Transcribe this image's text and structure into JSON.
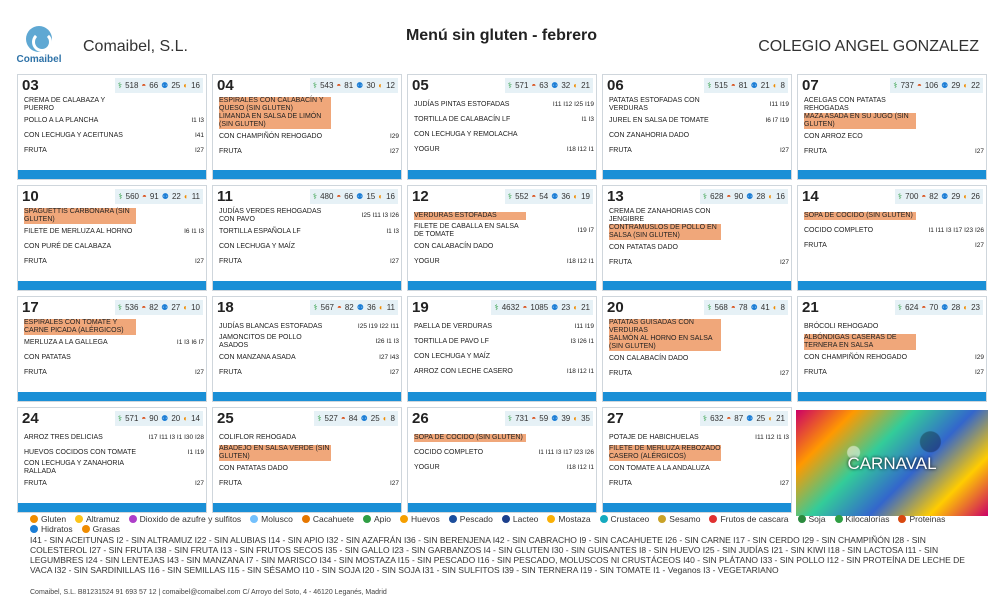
{
  "header": {
    "logo_text": "Comaibel",
    "company": "Comaibel, S.L.",
    "title": "Menú sin gluten - febrero",
    "school": "COLEGIO ANGEL GONZALEZ"
  },
  "weeks": [
    [
      {
        "day": "03",
        "kcal": "518",
        "pro": "66",
        "hid": "25",
        "gra": "16",
        "dishes": [
          {
            "name": "CREMA DE CALABAZA Y PUERRO",
            "codes": "",
            "hl": false
          },
          {
            "name": "POLLO A LA PLANCHA",
            "codes": "I1 I3",
            "hl": false
          },
          {
            "name": "CON LECHUGA Y ACEITUNAS",
            "codes": "I41",
            "hl": false
          },
          {
            "name": "FRUTA",
            "codes": "I27",
            "hl": false
          }
        ]
      },
      {
        "day": "04",
        "kcal": "543",
        "pro": "81",
        "hid": "30",
        "gra": "12",
        "dishes": [
          {
            "name": "ESPIRALES CON CALABACÍN Y QUESO (SIN GLUTEN)",
            "codes": "",
            "hl": true
          },
          {
            "name": "LIMANDA EN SALSA DE LIMÓN (SIN GLUTEN)",
            "codes": "",
            "hl": true
          },
          {
            "name": "CON CHAMPIÑÓN REHOGADO",
            "codes": "I29",
            "hl": false
          },
          {
            "name": "FRUTA",
            "codes": "I27",
            "hl": false
          }
        ]
      },
      {
        "day": "05",
        "kcal": "571",
        "pro": "63",
        "hid": "32",
        "gra": "21",
        "dishes": [
          {
            "name": "JUDÍAS PINTAS ESTOFADAS",
            "codes": "I11 I12 I25 I19",
            "hl": false
          },
          {
            "name": "TORTILLA DE CALABACÍN LF",
            "codes": "I1 I3",
            "hl": false
          },
          {
            "name": "CON LECHUGA Y REMOLACHA",
            "codes": "",
            "hl": false
          },
          {
            "name": "YOGUR",
            "codes": "I18 I12 I1",
            "hl": false
          }
        ]
      },
      {
        "day": "06",
        "kcal": "515",
        "pro": "81",
        "hid": "21",
        "gra": "8",
        "dishes": [
          {
            "name": "PATATAS ESTOFADAS CON VERDURAS",
            "codes": "I11 I19",
            "hl": false
          },
          {
            "name": "JUREL EN SALSA DE TOMATE",
            "codes": "I6 I7 I19",
            "hl": false
          },
          {
            "name": "CON ZANAHORIA DADO",
            "codes": "",
            "hl": false
          },
          {
            "name": "FRUTA",
            "codes": "I27",
            "hl": false
          }
        ]
      },
      {
        "day": "07",
        "kcal": "737",
        "pro": "106",
        "hid": "29",
        "gra": "22",
        "dishes": [
          {
            "name": "ACELGAS CON PATATAS REHOGADAS",
            "codes": "",
            "hl": false
          },
          {
            "name": "MAZA ASADA EN SU JUGO (SIN GLUTEN)",
            "codes": "",
            "hl": true
          },
          {
            "name": "CON ARROZ ECO",
            "codes": "",
            "hl": false
          },
          {
            "name": "FRUTA",
            "codes": "I27",
            "hl": false
          }
        ]
      }
    ],
    [
      {
        "day": "10",
        "kcal": "560",
        "pro": "91",
        "hid": "22",
        "gra": "11",
        "dishes": [
          {
            "name": "SPAGUETTIS CARBONARA (SIN GLUTEN)",
            "codes": "",
            "hl": true
          },
          {
            "name": "FILETE DE MERLUZA AL HORNO",
            "codes": "I6 I1 I3",
            "hl": false
          },
          {
            "name": "CON PURÉ DE CALABAZA",
            "codes": "",
            "hl": false
          },
          {
            "name": "FRUTA",
            "codes": "I27",
            "hl": false
          }
        ]
      },
      {
        "day": "11",
        "kcal": "480",
        "pro": "66",
        "hid": "15",
        "gra": "16",
        "dishes": [
          {
            "name": "JUDÍAS VERDES REHOGADAS CON PAVO",
            "codes": "I25 I11 I3 I26",
            "hl": false
          },
          {
            "name": "TORTILLA ESPAÑOLA LF",
            "codes": "I1 I3",
            "hl": false
          },
          {
            "name": "CON LECHUGA Y MAÍZ",
            "codes": "",
            "hl": false
          },
          {
            "name": "FRUTA",
            "codes": "I27",
            "hl": false
          }
        ]
      },
      {
        "day": "12",
        "kcal": "552",
        "pro": "54",
        "hid": "36",
        "gra": "19",
        "dishes": [
          {
            "name": "VERDURAS ESTOFADAS",
            "codes": "",
            "hl": true
          },
          {
            "name": "FILETE DE CABALLA EN SALSA DE TOMATE",
            "codes": "I19 I7",
            "hl": false
          },
          {
            "name": "CON CALABACÍN DADO",
            "codes": "",
            "hl": false
          },
          {
            "name": "YOGUR",
            "codes": "I18 I12 I1",
            "hl": false
          }
        ]
      },
      {
        "day": "13",
        "kcal": "628",
        "pro": "90",
        "hid": "28",
        "gra": "16",
        "dishes": [
          {
            "name": "CREMA DE ZANAHORIAS CON JENGIBRE",
            "codes": "",
            "hl": false
          },
          {
            "name": "CONTRAMUSLOS DE POLLO EN SALSA (SIN GLUTEN)",
            "codes": "",
            "hl": true
          },
          {
            "name": "CON PATATAS DADO",
            "codes": "",
            "hl": false
          },
          {
            "name": "FRUTA",
            "codes": "I27",
            "hl": false
          }
        ]
      },
      {
        "day": "14",
        "kcal": "700",
        "pro": "82",
        "hid": "29",
        "gra": "26",
        "dishes": [
          {
            "name": "SOPA DE COCIDO (SIN GLUTEN)",
            "codes": "",
            "hl": true
          },
          {
            "name": "COCIDO COMPLETO",
            "codes": "I1 I11 I3 I17 I23 I26",
            "hl": false
          },
          {
            "name": "FRUTA",
            "codes": "I27",
            "hl": false
          }
        ]
      }
    ],
    [
      {
        "day": "17",
        "kcal": "536",
        "pro": "82",
        "hid": "27",
        "gra": "10",
        "dishes": [
          {
            "name": "ESPIRALES CON TOMATE Y CARNE PICADA (ALÉRGICOS)",
            "codes": "",
            "hl": true
          },
          {
            "name": "MERLUZA A LA GALLEGA",
            "codes": "I1 I3 I6 I7",
            "hl": false
          },
          {
            "name": "CON PATATAS",
            "codes": "",
            "hl": false
          },
          {
            "name": "FRUTA",
            "codes": "I27",
            "hl": false
          }
        ]
      },
      {
        "day": "18",
        "kcal": "567",
        "pro": "82",
        "hid": "36",
        "gra": "11",
        "dishes": [
          {
            "name": "JUDÍAS BLANCAS ESTOFADAS",
            "codes": "I25 I19 I22 I11",
            "hl": false
          },
          {
            "name": "JAMONCITOS DE POLLO ASADOS",
            "codes": "I26 I1 I3",
            "hl": false
          },
          {
            "name": "CON MANZANA ASADA",
            "codes": "I27 I43",
            "hl": false
          },
          {
            "name": "FRUTA",
            "codes": "I27",
            "hl": false
          }
        ]
      },
      {
        "day": "19",
        "kcal": "4632",
        "pro": "1085",
        "hid": "23",
        "gra": "21",
        "dishes": [
          {
            "name": "PAELLA DE VERDURAS",
            "codes": "I11 I19",
            "hl": false
          },
          {
            "name": "TORTILLA DE PAVO LF",
            "codes": "I3 I26 I1",
            "hl": false
          },
          {
            "name": "CON LECHUGA Y MAÍZ",
            "codes": "",
            "hl": false
          },
          {
            "name": "ARROZ CON LECHE CASERO",
            "codes": "I18 I12 I1",
            "hl": false
          }
        ]
      },
      {
        "day": "20",
        "kcal": "568",
        "pro": "78",
        "hid": "41",
        "gra": "8",
        "dishes": [
          {
            "name": "PATATAS GUISADAS CON VERDURAS",
            "codes": "",
            "hl": true
          },
          {
            "name": "SALMÓN AL HORNO EN SALSA (SIN GLUTEN)",
            "codes": "",
            "hl": true
          },
          {
            "name": "CON CALABACÍN DADO",
            "codes": "",
            "hl": false
          },
          {
            "name": "FRUTA",
            "codes": "I27",
            "hl": false
          }
        ]
      },
      {
        "day": "21",
        "kcal": "624",
        "pro": "70",
        "hid": "28",
        "gra": "23",
        "dishes": [
          {
            "name": "BRÓCOLI REHOGADO",
            "codes": "",
            "hl": false
          },
          {
            "name": "ALBÓNDIGAS CASERAS DE TERNERA EN SALSA",
            "codes": "",
            "hl": true
          },
          {
            "name": "CON CHAMPIÑÓN REHOGADO",
            "codes": "I29",
            "hl": false
          },
          {
            "name": "FRUTA",
            "codes": "I27",
            "hl": false
          }
        ]
      }
    ],
    [
      {
        "day": "24",
        "kcal": "571",
        "pro": "90",
        "hid": "20",
        "gra": "14",
        "dishes": [
          {
            "name": "ARROZ TRES DELICIAS",
            "codes": "I17 I11 I3 I1 I30 I28",
            "hl": false
          },
          {
            "name": "HUEVOS COCIDOS CON TOMATE",
            "codes": "I1 I19",
            "hl": false
          },
          {
            "name": "CON LECHUGA Y ZANAHORIA RALLADA",
            "codes": "",
            "hl": false
          },
          {
            "name": "FRUTA",
            "codes": "I27",
            "hl": false
          }
        ]
      },
      {
        "day": "25",
        "kcal": "527",
        "pro": "84",
        "hid": "25",
        "gra": "8",
        "dishes": [
          {
            "name": "COLIFLOR REHOGADA",
            "codes": "",
            "hl": false
          },
          {
            "name": "ABADEJO EN SALSA VERDE (SIN GLUTEN)",
            "codes": "",
            "hl": true
          },
          {
            "name": "CON PATATAS DADO",
            "codes": "",
            "hl": false
          },
          {
            "name": "FRUTA",
            "codes": "I27",
            "hl": false
          }
        ]
      },
      {
        "day": "26",
        "kcal": "731",
        "pro": "59",
        "hid": "39",
        "gra": "35",
        "dishes": [
          {
            "name": "SOPA DE COCIDO (SIN GLUTEN)",
            "codes": "",
            "hl": true
          },
          {
            "name": "COCIDO COMPLETO",
            "codes": "I1 I11 I3 I17 I23 I26",
            "hl": false
          },
          {
            "name": "YOGUR",
            "codes": "I18 I12 I1",
            "hl": false
          }
        ]
      },
      {
        "day": "27",
        "kcal": "632",
        "pro": "87",
        "hid": "25",
        "gra": "21",
        "dishes": [
          {
            "name": "POTAJE DE HABICHUELAS",
            "codes": "I11 I12 I1 I3",
            "hl": false
          },
          {
            "name": "FILETE DE MERLUZA REBOZADO CASERO (ALÉRGICOS)",
            "codes": "",
            "hl": true
          },
          {
            "name": "CON TOMATE A LA ANDALUZA",
            "codes": "",
            "hl": false
          },
          {
            "name": "FRUTA",
            "codes": "I27",
            "hl": false
          }
        ]
      }
    ]
  ],
  "carnaval_label": "CARNAVAL",
  "legend": {
    "allergens": [
      {
        "label": "Gluten",
        "color": "#f08c00"
      },
      {
        "label": "Altramuz",
        "color": "#fcc419"
      },
      {
        "label": "Dioxido de azufre y sulfitos",
        "color": "#ae3ec9"
      },
      {
        "label": "Molusco",
        "color": "#74c0fc"
      },
      {
        "label": "Cacahuete",
        "color": "#e67700"
      },
      {
        "label": "Apio",
        "color": "#2f9e44"
      },
      {
        "label": "Huevos",
        "color": "#f59f00"
      },
      {
        "label": "Pescado",
        "color": "#1c4e9c"
      },
      {
        "label": "Lacteo",
        "color": "#1c3f8c"
      },
      {
        "label": "Mostaza",
        "color": "#fab005"
      },
      {
        "label": "Crustaceo",
        "color": "#15aabf"
      },
      {
        "label": "Sesamo",
        "color": "#c9a227"
      },
      {
        "label": "Frutos de cascara",
        "color": "#e03131"
      },
      {
        "label": "Soja",
        "color": "#2b8a3e"
      },
      {
        "label": "Kilocalorías",
        "color": "#2f9e44"
      },
      {
        "label": "Proteinas",
        "color": "#d9480f"
      },
      {
        "label": "Hidratos",
        "color": "#1c7ed6"
      },
      {
        "label": "Grasas",
        "color": "#f08c00"
      }
    ],
    "codes_text": "I41 - SIN ACEITUNAS  I2 - SIN ALTRAMUZ  I22 - SIN ALUBIAS  I14 - SIN APIO  I32 - SIN AZAFRÁN  I36 - SIN BERENJENA  I42 - SIN CABRACHO  I9 - SIN CACAHUETE  I26 - SIN CARNE  I17 - SIN CERDO  I29 - SIN CHAMPIÑÓN  I28 - SIN COLESTEROL  I27 - SIN FRUTA  I38 - SIN FRUTA  I13 - SIN FRUTOS SECOS  I35 - SIN GALLO  I23 - SIN GARBANZOS  I4 - SIN GLUTEN  I30 - SIN GUISANTES  I8 - SIN HUEVO  I25 - SIN JUDÍAS  I21 - SIN KIWI  I18 - SIN LACTOSA  I11 - SIN LEGUMBRES  I24 - SIN LENTEJAS  I43 - SIN MANZANA  I7 - SIN MARISCO  I34 - SIN MOSTAZA  I15 - SIN PESCADO  I16 - SIN PESCADO, MOLUSCOS NI CRUSTÁCEOS  I40 - SIN PLÁTANO  I33 - SIN POLLO  I12 - SIN PROTEÍNA DE LECHE DE VACA  I32 - SIN SARDINILLAS  I16 - SIN SEMILLAS  I15 - SIN SÉSAMO  I10 - SIN SOJA  I20 - SIN SOJA  I31 - SIN SULFITOS  I39 - SIN TERNERA  I19 - SIN TOMATE  I1 - Veganos  I3 - VEGETARIANO"
  },
  "footer": {
    "text": "Comaibel, S.L.     B81231524     91 693 57 12 | comaibel@comaibel.com     C/ Arroyo del Soto, 4 - 46120 Leganés, Madrid"
  }
}
